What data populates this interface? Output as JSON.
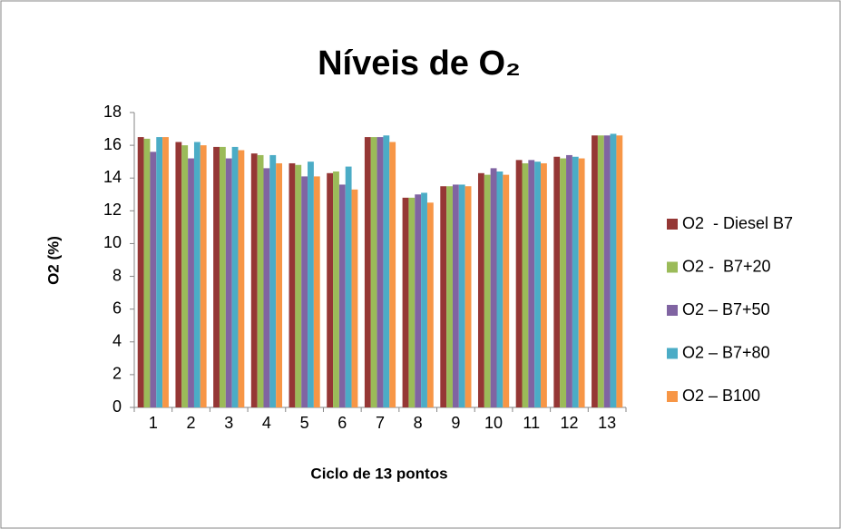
{
  "chart_data": {
    "type": "bar",
    "title": "Níveis de O₂",
    "x_label": "Ciclo de 13 pontos",
    "y_label": "O2 (%)",
    "categories": [
      "1",
      "2",
      "3",
      "4",
      "5",
      "6",
      "7",
      "8",
      "9",
      "10",
      "11",
      "12",
      "13"
    ],
    "series": [
      {
        "name": "O2  - Diesel B7",
        "color": "#953735",
        "values": [
          16.5,
          16.2,
          15.9,
          15.5,
          14.9,
          14.3,
          16.5,
          12.8,
          13.5,
          14.3,
          15.1,
          15.3,
          16.6
        ]
      },
      {
        "name": "O2 -  B7+20",
        "color": "#9bbb59",
        "values": [
          16.4,
          16.0,
          15.9,
          15.4,
          14.8,
          14.4,
          16.5,
          12.8,
          13.5,
          14.2,
          14.9,
          15.2,
          16.6
        ]
      },
      {
        "name": "O2 – B7+50",
        "color": "#8064a2",
        "values": [
          15.6,
          15.2,
          15.2,
          14.6,
          14.1,
          13.6,
          16.5,
          13.0,
          13.6,
          14.6,
          15.1,
          15.4,
          16.6
        ]
      },
      {
        "name": "O2 – B7+80",
        "color": "#4bacc6",
        "values": [
          16.5,
          16.2,
          15.9,
          15.4,
          15.0,
          14.7,
          16.6,
          13.1,
          13.6,
          14.4,
          15.0,
          15.3,
          16.7
        ]
      },
      {
        "name": "O2 – B100",
        "color": "#f79646",
        "values": [
          16.5,
          16.0,
          15.7,
          14.9,
          14.1,
          13.3,
          16.2,
          12.5,
          13.5,
          14.2,
          14.9,
          15.2,
          16.6
        ]
      }
    ],
    "ylim": [
      0,
      18
    ],
    "yticks": [
      0,
      2,
      4,
      6,
      8,
      10,
      12,
      14,
      16,
      18
    ],
    "grid": false,
    "legend": "right"
  }
}
